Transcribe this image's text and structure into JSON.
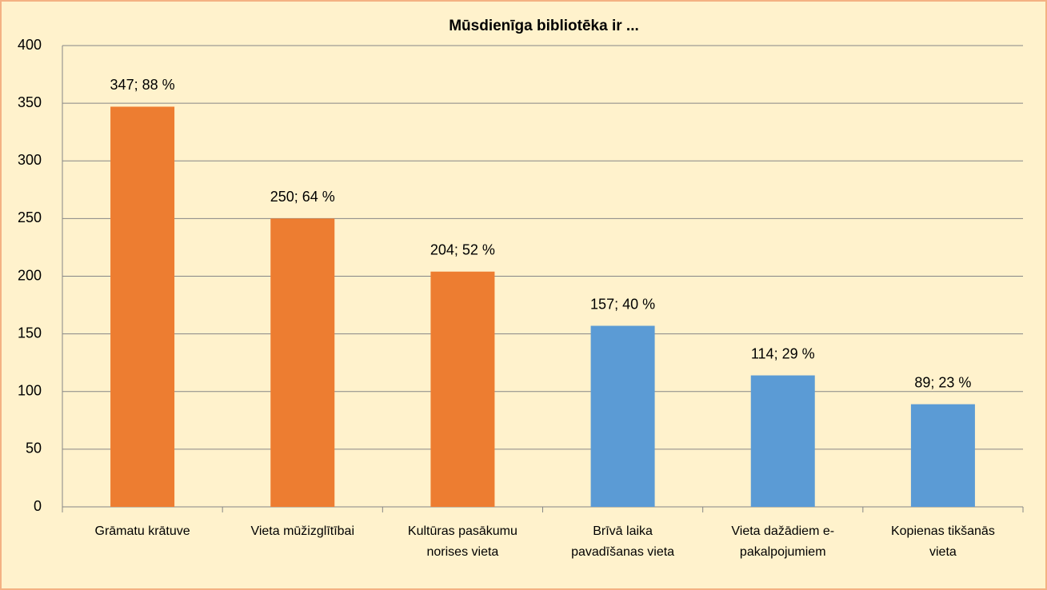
{
  "chart_data": {
    "type": "bar",
    "title": "Mūsdienīga bibliotēka ir ...",
    "categories": [
      "Grāmatu krātuve",
      "Vieta mūžizglītībai",
      "Kultūras pasākumu norises vieta",
      "Brīvā laika pavadīšanas vieta",
      "Vieta dažādiem e-pakalpojumiem",
      "Kopienas tikšanās vieta"
    ],
    "values": [
      347,
      250,
      204,
      157,
      114,
      89
    ],
    "value_labels": [
      "347; 88 %",
      "250; 64 %",
      "204; 52 %",
      "157; 40 %",
      "114; 29 %",
      "89; 23 %"
    ],
    "colors": [
      "#ed7d31",
      "#ed7d31",
      "#ed7d31",
      "#5b9bd5",
      "#5b9bd5",
      "#5b9bd5"
    ],
    "ylim": [
      0,
      400
    ],
    "yticks": [
      0,
      50,
      100,
      150,
      200,
      250,
      300,
      350,
      400
    ],
    "grid": true
  }
}
